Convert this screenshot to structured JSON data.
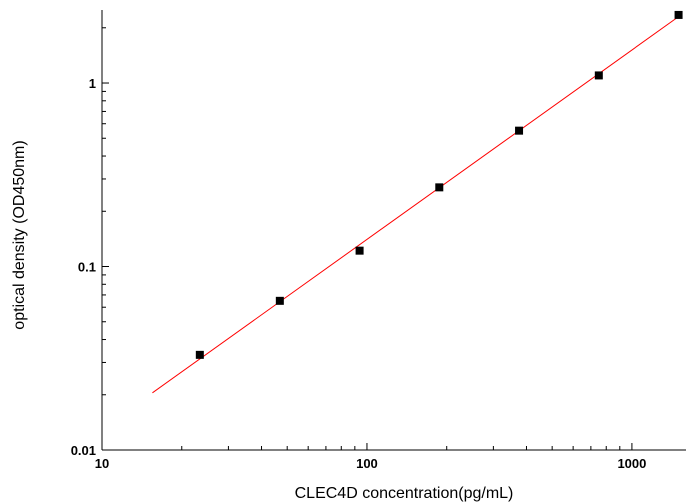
{
  "chart_data": {
    "type": "scatter",
    "title": "",
    "xlabel": "CLEC4D  concentration(pg/mL)",
    "ylabel": "optical density (OD450nm)",
    "x_scale": "log",
    "y_scale": "log",
    "xlim": [
      10,
      1600
    ],
    "ylim": [
      0.01,
      2.5
    ],
    "x_ticks": [
      {
        "value": 10,
        "label": "10"
      },
      {
        "value": 100,
        "label": "100"
      },
      {
        "value": 1000,
        "label": "1000"
      }
    ],
    "y_ticks": [
      {
        "value": 0.01,
        "label": "0.01"
      },
      {
        "value": 0.1,
        "label": "0.1"
      },
      {
        "value": 1,
        "label": "1"
      }
    ],
    "grid": false,
    "series": [
      {
        "x": [
          23.4,
          46.9,
          93.8,
          187.5,
          375,
          750,
          1500
        ],
        "y": [
          0.033,
          0.065,
          0.122,
          0.27,
          0.55,
          1.1,
          2.35
        ],
        "marker": "square",
        "color": "#000000"
      }
    ],
    "fit_line": {
      "x": [
        15.5,
        1500
      ],
      "y": [
        0.0205,
        2.3
      ],
      "color": "#ff0000"
    }
  }
}
